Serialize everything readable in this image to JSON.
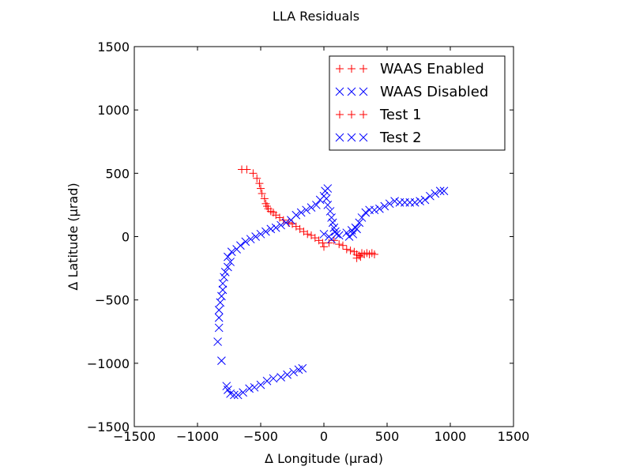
{
  "chart_data": {
    "type": "scatter",
    "title": "LLA Residuals",
    "xlabel": "Δ Longitude (μrad)",
    "ylabel": "Δ Latitude (μrad)",
    "xlim": [
      -1500,
      1500
    ],
    "ylim": [
      -1500,
      1500
    ],
    "xticks": [
      -1500,
      -1000,
      -500,
      0,
      500,
      1000,
      1500
    ],
    "yticks": [
      -1500,
      -1000,
      -500,
      0,
      500,
      1000,
      1500
    ],
    "xtick_labels": [
      "−1500",
      "−1000",
      "−500",
      "0",
      "500",
      "1000",
      "1500"
    ],
    "ytick_labels": [
      "−1500",
      "−1000",
      "−500",
      "0",
      "500",
      "1000",
      "1500"
    ],
    "grid": false,
    "legend_position": "top-right",
    "legend": [
      {
        "label": "WAAS Enabled",
        "marker": "+",
        "color": "#ff0000"
      },
      {
        "label": "WAAS Disabled",
        "marker": "x",
        "color": "#0000ff"
      },
      {
        "label": "Test 1",
        "marker": "+",
        "color": "#ff0000"
      },
      {
        "label": "Test 2",
        "marker": "x",
        "color": "#0000ff"
      }
    ],
    "series": [
      {
        "name": "WAAS Enabled",
        "marker": "+",
        "color": "#ff0000",
        "points": [
          [
            -650,
            530
          ],
          [
            -610,
            530
          ],
          [
            -560,
            500
          ],
          [
            -530,
            460
          ],
          [
            -510,
            420
          ],
          [
            -500,
            380
          ],
          [
            -490,
            340
          ],
          [
            -470,
            300
          ],
          [
            -460,
            260
          ],
          [
            -450,
            240
          ],
          [
            -440,
            220
          ],
          [
            -420,
            200
          ],
          [
            -400,
            190
          ],
          [
            -380,
            170
          ],
          [
            -350,
            150
          ],
          [
            -320,
            130
          ],
          [
            -280,
            110
          ],
          [
            -250,
            100
          ],
          [
            -220,
            80
          ],
          [
            -190,
            60
          ],
          [
            -160,
            40
          ],
          [
            -130,
            20
          ],
          [
            -100,
            10
          ],
          [
            -70,
            -10
          ],
          [
            -40,
            -30
          ],
          [
            -10,
            -50
          ],
          [
            0,
            -80
          ],
          [
            40,
            -50
          ],
          [
            80,
            -30
          ],
          [
            120,
            -60
          ],
          [
            150,
            -70
          ],
          [
            180,
            -100
          ],
          [
            210,
            -110
          ],
          [
            240,
            -120
          ],
          [
            260,
            -140
          ],
          [
            280,
            -150
          ],
          [
            300,
            -130
          ],
          [
            320,
            -140
          ],
          [
            340,
            -130
          ],
          [
            360,
            -140
          ],
          [
            380,
            -130
          ],
          [
            400,
            -140
          ],
          [
            260,
            -170
          ],
          [
            290,
            -160
          ]
        ]
      },
      {
        "name": "WAAS Disabled",
        "marker": "x",
        "color": "#0000ff",
        "points": [
          [
            -840,
            -830
          ],
          [
            -830,
            -720
          ],
          [
            -830,
            -640
          ],
          [
            -830,
            -580
          ],
          [
            -820,
            -520
          ],
          [
            -810,
            -470
          ],
          [
            -800,
            -420
          ],
          [
            -800,
            -370
          ],
          [
            -790,
            -320
          ],
          [
            -780,
            -280
          ],
          [
            -760,
            -240
          ],
          [
            -740,
            -200
          ],
          [
            -760,
            -160
          ],
          [
            -730,
            -120
          ],
          [
            -690,
            -100
          ],
          [
            -660,
            -70
          ],
          [
            -620,
            -40
          ],
          [
            -580,
            -20
          ],
          [
            -540,
            0
          ],
          [
            -500,
            20
          ],
          [
            -460,
            40
          ],
          [
            -420,
            60
          ],
          [
            -380,
            70
          ],
          [
            -340,
            90
          ],
          [
            -300,
            110
          ],
          [
            -260,
            130
          ],
          [
            -220,
            170
          ],
          [
            -180,
            190
          ],
          [
            -140,
            210
          ],
          [
            -100,
            230
          ],
          [
            -60,
            250
          ],
          [
            -30,
            290
          ],
          [
            0,
            320
          ],
          [
            10,
            360
          ],
          [
            30,
            380
          ],
          [
            20,
            300
          ],
          [
            30,
            250
          ],
          [
            50,
            200
          ],
          [
            60,
            150
          ],
          [
            70,
            110
          ],
          [
            80,
            70
          ],
          [
            90,
            40
          ],
          [
            100,
            20
          ],
          [
            40,
            0
          ],
          [
            0,
            20
          ],
          [
            60,
            -20
          ],
          [
            120,
            10
          ],
          [
            180,
            30
          ],
          [
            220,
            50
          ],
          [
            250,
            70
          ],
          [
            280,
            110
          ],
          [
            300,
            150
          ],
          [
            330,
            190
          ],
          [
            360,
            210
          ],
          [
            400,
            210
          ],
          [
            440,
            220
          ],
          [
            480,
            240
          ],
          [
            520,
            260
          ],
          [
            560,
            280
          ],
          [
            600,
            270
          ],
          [
            640,
            270
          ],
          [
            680,
            270
          ],
          [
            720,
            270
          ],
          [
            760,
            280
          ],
          [
            800,
            290
          ],
          [
            840,
            320
          ],
          [
            880,
            340
          ],
          [
            920,
            360
          ],
          [
            950,
            360
          ],
          [
            200,
            0
          ],
          [
            230,
            20
          ],
          [
            260,
            60
          ],
          [
            -810,
            -980
          ],
          [
            -770,
            -1180
          ],
          [
            -760,
            -1210
          ],
          [
            -740,
            -1240
          ],
          [
            -710,
            -1250
          ],
          [
            -680,
            -1250
          ],
          [
            -640,
            -1230
          ],
          [
            -590,
            -1200
          ],
          [
            -550,
            -1190
          ],
          [
            -500,
            -1170
          ],
          [
            -450,
            -1140
          ],
          [
            -400,
            -1120
          ],
          [
            -340,
            -1110
          ],
          [
            -290,
            -1090
          ],
          [
            -240,
            -1070
          ],
          [
            -200,
            -1050
          ],
          [
            -170,
            -1040
          ]
        ]
      }
    ]
  }
}
